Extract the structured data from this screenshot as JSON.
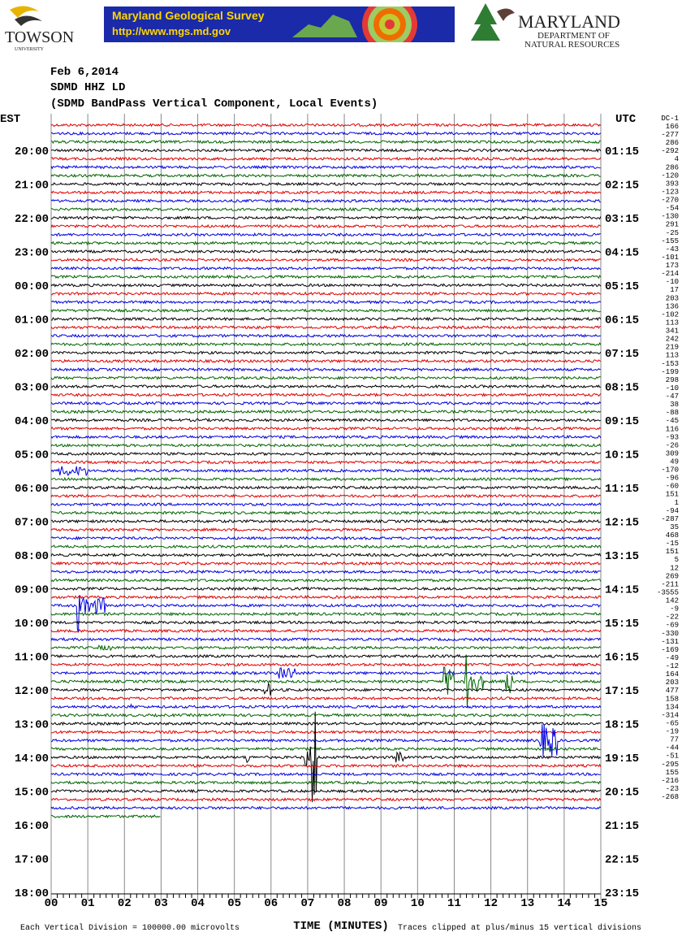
{
  "header": {
    "logo_left": "TOWSON",
    "logo_left_sub": "UNIVERSITY",
    "banner_title": "Maryland Geological Survey",
    "banner_url": "http://www.mgs.md.gov",
    "logo_right_title": "MARYLAND",
    "logo_right_line1": "DEPARTMENT OF",
    "logo_right_line2": "NATURAL RESOURCES"
  },
  "plot": {
    "date": "Feb 6,2014",
    "station": "SDMD HHZ LD",
    "description": "(SDMD BandPass Vertical Component, Local Events)",
    "left_axis_title": "EST",
    "right_axis_title": "UTC",
    "dc_title": "DC-1",
    "est_labels": [
      "20:00",
      "21:00",
      "22:00",
      "23:00",
      "00:00",
      "01:00",
      "02:00",
      "03:00",
      "04:00",
      "05:00",
      "06:00",
      "07:00",
      "08:00",
      "09:00",
      "10:00",
      "11:00",
      "12:00",
      "13:00",
      "14:00",
      "15:00",
      "16:00",
      "17:00",
      "18:00"
    ],
    "utc_labels": [
      "01:15",
      "02:15",
      "03:15",
      "04:15",
      "05:15",
      "06:15",
      "07:15",
      "08:15",
      "09:15",
      "10:15",
      "11:15",
      "12:15",
      "13:15",
      "14:15",
      "15:15",
      "16:15",
      "17:15",
      "18:15",
      "19:15",
      "20:15",
      "21:15",
      "22:15",
      "23:15"
    ],
    "dc_offsets": [
      "166",
      "-277",
      "286",
      "-292",
      "4",
      "286",
      "-120",
      "393",
      "-123",
      "-270",
      "-54",
      "-130",
      "291",
      "-25",
      "-155",
      "-43",
      "-101",
      "173",
      "-214",
      "-10",
      "17",
      "203",
      "136",
      "-102",
      "113",
      "341",
      "242",
      "219",
      "113",
      "-153",
      "-199",
      "298",
      "-10",
      "-47",
      "38",
      "-88",
      "-45",
      "116",
      "-93",
      "-26",
      "309",
      "49",
      "-170",
      "-96",
      "-60",
      "151",
      "1",
      "-94",
      "-287",
      "35",
      "468",
      "-15",
      "151",
      "5",
      "12",
      "269",
      "-211",
      "-3555",
      "142",
      "-9",
      "-22",
      "-69",
      "-330",
      "-131",
      "-169",
      "-49",
      "-12",
      "164",
      "203",
      "477",
      "158",
      "134",
      "-314",
      "-65",
      "-19",
      "77",
      "-44",
      "-51",
      "-295",
      "155",
      "-216",
      "-23",
      "-268"
    ],
    "x_labels": [
      "00",
      "01",
      "02",
      "03",
      "04",
      "05",
      "06",
      "07",
      "08",
      "09",
      "10",
      "11",
      "12",
      "13",
      "14",
      "15"
    ],
    "x_axis_title": "TIME (MINUTES)",
    "footer_left": "Each Vertical Division = 100000.00 microvolts",
    "footer_right": "Traces clipped at plus/minus 15 vertical divisions"
  }
}
